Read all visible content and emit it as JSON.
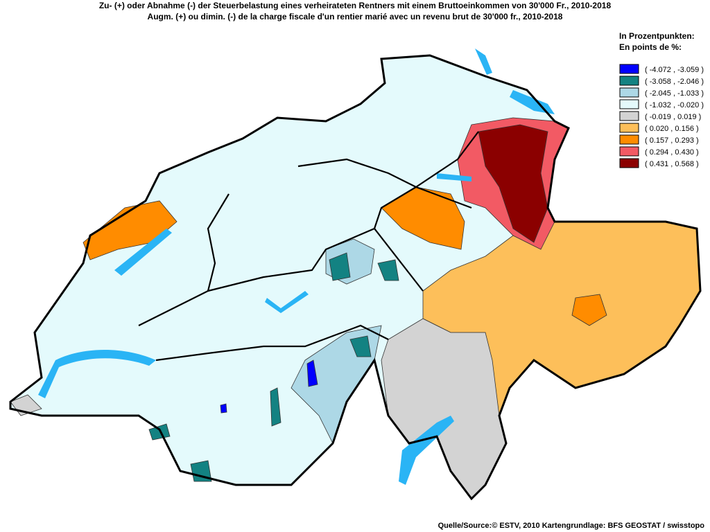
{
  "title": [
    "Zu- (+) oder Abnahme (-) der Steuerbelastung eines verheirateten Rentners mit einem Bruttoeinkommen von 30'000 Fr., 2010-2018",
    "Augm. (+) ou dimin. (-) de la charge fiscale d'un rentier marié avec un revenu brut de 30'000 fr., 2010-2018"
  ],
  "legend": {
    "title": [
      "In Prozentpunkten:",
      "En points de %:"
    ],
    "items": [
      {
        "label": "( -4.072 , -3.059 )",
        "color": "#0000ff"
      },
      {
        "label": "( -3.058 , -2.046 )",
        "color": "#138282"
      },
      {
        "label": "( -2.045 , -1.033 )",
        "color": "#add8e6"
      },
      {
        "label": "( -1.032 , -0.020 )",
        "color": "#e4fafc"
      },
      {
        "label": "( -0.019 , 0.019 )",
        "color": "#d3d3d3"
      },
      {
        "label": "( 0.020 , 0.156 )",
        "color": "#fdbf5a"
      },
      {
        "label": "( 0.157 , 0.293 )",
        "color": "#ff8c00"
      },
      {
        "label": "( 0.294 , 0.430 )",
        "color": "#f25a64"
      },
      {
        "label": "( 0.431 , 0.568 )",
        "color": "#8b0000"
      }
    ]
  },
  "source": "Quelle/Source:© ESTV, 2010 Kartengrundlage: BFS GEOSTAT / swisstopo"
}
